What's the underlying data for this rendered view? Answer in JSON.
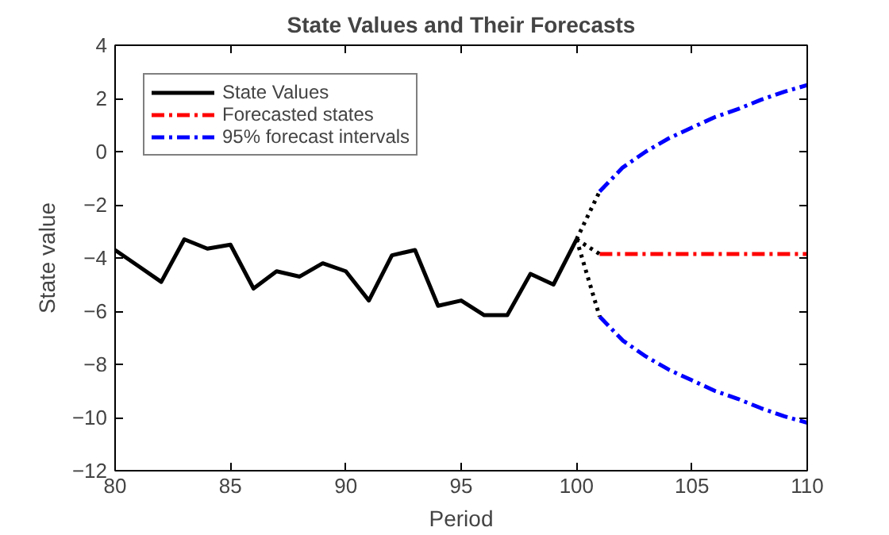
{
  "chart_data": {
    "type": "line",
    "title": "State Values and Their Forecasts",
    "xlabel": "Period",
    "ylabel": "State value",
    "xlim": [
      80,
      110
    ],
    "xticks": [
      80,
      85,
      90,
      95,
      100,
      105,
      110
    ],
    "ylim": [
      -12,
      4
    ],
    "yticks": [
      -12,
      -10,
      -8,
      -6,
      -4,
      -2,
      0,
      2,
      4
    ],
    "grid": false,
    "legend": "top left",
    "marker": "none",
    "series": [
      {
        "name": "State Values",
        "color": "#000000",
        "line_style": "solid",
        "x": [
          80,
          81,
          82,
          83,
          84,
          85,
          86,
          87,
          88,
          89,
          90,
          91,
          92,
          93,
          94,
          95,
          96,
          97,
          98,
          99,
          100
        ],
        "values": [
          -3.7,
          -4.3,
          -4.9,
          -3.3,
          -3.65,
          -3.5,
          -5.15,
          -4.5,
          -4.7,
          -4.2,
          -4.5,
          -5.6,
          -3.9,
          -3.7,
          -5.8,
          -5.6,
          -6.15,
          -6.15,
          -4.6,
          -5.0,
          -3.3
        ]
      },
      {
        "name": "Forecasted states",
        "color": "#ff0000",
        "line_style": "dashed",
        "x": [
          101,
          102,
          103,
          104,
          105,
          106,
          107,
          108,
          109,
          110
        ],
        "values": [
          -3.85,
          -3.85,
          -3.85,
          -3.85,
          -3.85,
          -3.85,
          -3.85,
          -3.85,
          -3.85,
          -3.85
        ]
      },
      {
        "name": "95% forecast intervals",
        "color": "#0000ff",
        "line_style": "dashed",
        "x": [
          101,
          102,
          103,
          104,
          105,
          106,
          107,
          108,
          109,
          110
        ],
        "values": [
          -1.5,
          -0.6,
          0.0,
          0.5,
          0.9,
          1.3,
          1.6,
          1.95,
          2.25,
          2.5
        ]
      },
      {
        "color": "#0000ff",
        "line_style": "dashed",
        "x": [
          101,
          102,
          103,
          104,
          105,
          106,
          107,
          108,
          109,
          110
        ],
        "values": [
          -6.2,
          -7.1,
          -7.7,
          -8.2,
          -8.6,
          -9.0,
          -9.3,
          -9.65,
          -9.95,
          -10.2
        ]
      },
      {
        "color": "#000000",
        "line_style": "dotted",
        "x": [
          100,
          101
        ],
        "values": [
          -3.3,
          -1.5
        ]
      },
      {
        "color": "#000000",
        "line_style": "dotted",
        "x": [
          100,
          101
        ],
        "values": [
          -3.3,
          -3.85
        ]
      },
      {
        "color": "#000000",
        "line_style": "dotted",
        "x": [
          100,
          101
        ],
        "values": [
          -3.3,
          -6.2
        ]
      }
    ]
  }
}
